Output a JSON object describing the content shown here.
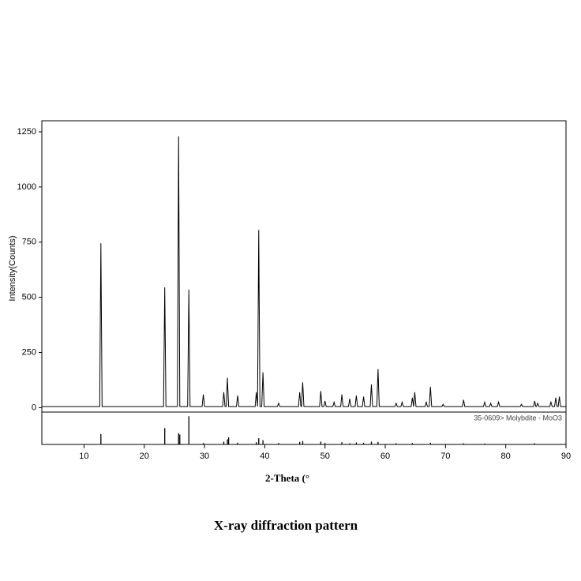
{
  "chart_data": [
    {
      "type": "line",
      "caption": "X-ray diffraction pattern",
      "x_label": "2-Theta (°",
      "y_label": "Intensity(Counts)",
      "xlim": [
        3,
        90
      ],
      "ylim": [
        -20,
        1300
      ],
      "xticks": [
        10,
        20,
        30,
        40,
        50,
        60,
        70,
        80,
        90
      ],
      "yticks": [
        0,
        250,
        500,
        750,
        1000,
        1250
      ],
      "color": "#000000",
      "x": [
        3,
        12.6,
        12.8,
        13.0,
        23.2,
        23.4,
        23.6,
        25.5,
        25.7,
        25.9,
        27.2,
        27.4,
        27.6,
        29.6,
        29.8,
        30.0,
        33.0,
        33.2,
        33.4,
        33.6,
        33.8,
        34.0,
        35.3,
        35.5,
        35.7,
        38.4,
        38.6,
        38.8,
        38.8,
        39.0,
        39.2,
        39.5,
        39.7,
        39.9,
        42.1,
        42.3,
        42.5,
        45.6,
        45.8,
        46.0,
        46.1,
        46.3,
        46.5,
        49.1,
        49.3,
        49.5,
        49.8,
        50.0,
        50.2,
        51.3,
        51.5,
        51.7,
        52.6,
        52.8,
        53.0,
        53.9,
        54.1,
        54.3,
        55.0,
        55.2,
        55.4,
        56.2,
        56.4,
        56.6,
        57.5,
        57.7,
        57.9,
        58.6,
        58.8,
        59.0,
        61.6,
        61.8,
        62.0,
        62.6,
        62.8,
        63.0,
        64.3,
        64.5,
        64.7,
        64.7,
        64.9,
        65.1,
        66.6,
        66.8,
        67.0,
        67.3,
        67.5,
        67.7,
        69.4,
        69.6,
        69.8,
        72.8,
        73.0,
        73.2,
        76.3,
        76.5,
        76.7,
        77.3,
        77.5,
        77.7,
        78.6,
        78.8,
        79.0,
        82.4,
        82.6,
        82.8,
        84.6,
        84.8,
        85.0,
        85.1,
        85.3,
        85.5,
        87.3,
        87.5,
        87.7,
        88.1,
        88.3,
        88.5,
        88.7,
        88.9,
        89.1,
        90
      ],
      "values": [
        5,
        5,
        745,
        5,
        5,
        545,
        5,
        5,
        1230,
        5,
        5,
        535,
        5,
        5,
        60,
        5,
        5,
        70,
        5,
        5,
        135,
        5,
        5,
        55,
        5,
        5,
        70,
        5,
        5,
        805,
        5,
        5,
        160,
        5,
        5,
        20,
        5,
        5,
        70,
        5,
        5,
        115,
        5,
        5,
        75,
        5,
        5,
        30,
        5,
        5,
        25,
        5,
        5,
        60,
        5,
        5,
        40,
        5,
        5,
        55,
        5,
        5,
        50,
        5,
        5,
        105,
        5,
        5,
        175,
        5,
        5,
        20,
        5,
        5,
        25,
        5,
        5,
        45,
        5,
        5,
        70,
        5,
        5,
        25,
        5,
        5,
        95,
        5,
        5,
        15,
        5,
        5,
        35,
        5,
        5,
        25,
        5,
        5,
        20,
        5,
        5,
        25,
        5,
        5,
        15,
        5,
        5,
        30,
        5,
        5,
        20,
        5,
        5,
        25,
        5,
        5,
        45,
        5,
        5,
        50,
        5,
        5
      ]
    },
    {
      "type": "bar",
      "label": "35-0609> Molybdite - MoO3",
      "xlim": [
        3,
        90
      ],
      "ylim": [
        0,
        115
      ],
      "color": "#000000",
      "x": [
        12.8,
        23.4,
        25.7,
        25.9,
        27.4,
        29.8,
        33.2,
        33.8,
        34.0,
        35.5,
        38.6,
        39.0,
        39.7,
        42.3,
        45.8,
        46.3,
        49.3,
        50.0,
        52.8,
        54.1,
        55.2,
        56.4,
        57.7,
        58.8,
        61.8,
        64.5,
        67.5,
        73.0,
        76.5,
        84.8
      ],
      "values": [
        37,
        58,
        40,
        35,
        100,
        5,
        10,
        18,
        25,
        6,
        8,
        22,
        15,
        5,
        9,
        12,
        10,
        5,
        8,
        4,
        7,
        6,
        10,
        9,
        4,
        5,
        6,
        4,
        3,
        4
      ]
    }
  ]
}
